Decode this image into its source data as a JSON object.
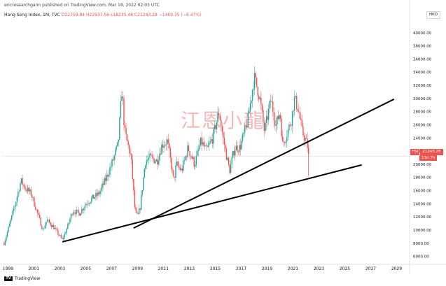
{
  "header": {
    "published": "ericresearchgann published on TradingView.com, Mar 18, 2022 02:03 UTC"
  },
  "legend": {
    "symbol": "Hang Seng Index, 1M, TVC",
    "open": "O22759.84",
    "high": "H22937.56",
    "low": "L18235.48",
    "close": "C21243.28",
    "change": "−1469.75 (−6.47%)"
  },
  "currency": "HKD",
  "price_tag": {
    "symbol": "HSI",
    "value": "21243.28",
    "countdown": "13d 7h"
  },
  "watermark": "江恩小龍",
  "footer": {
    "logo_text": "TV",
    "brand": "TradingView"
  },
  "colors": {
    "up": "#26a69a",
    "down": "#ef5350",
    "trendline": "#000000",
    "watermark": "#f2a0a0"
  },
  "chart_data": {
    "type": "candlestick",
    "title": "Hang Seng Index, 1M, TVC",
    "ylim": [
      5000,
      42000
    ],
    "xlim": [
      1998.6,
      2030.0
    ],
    "y_ticks": [
      "6000.00",
      "8000.00",
      "10000.00",
      "12000.00",
      "14000.00",
      "16000.00",
      "18000.00",
      "20000.00",
      "22000.00",
      "24000.00",
      "26000.00",
      "28000.00",
      "30000.00",
      "32000.00",
      "34000.00",
      "36000.00",
      "38000.00",
      "40000.00"
    ],
    "y_tick_values": [
      6000,
      8000,
      10000,
      12000,
      14000,
      16000,
      18000,
      20000,
      22000,
      24000,
      26000,
      28000,
      30000,
      32000,
      34000,
      36000,
      38000,
      40000
    ],
    "x_ticks": [
      "1999",
      "2001",
      "2003",
      "2005",
      "2007",
      "2009",
      "2011",
      "2013",
      "2015",
      "2017",
      "2019",
      "2021",
      "2023",
      "2025",
      "2027",
      "2029"
    ],
    "x_tick_values": [
      1999,
      2001,
      2003,
      2005,
      2007,
      2009,
      2011,
      2013,
      2015,
      2017,
      2019,
      2021,
      2023,
      2025,
      2027,
      2029
    ],
    "last_price": 21243.28,
    "price_path": [
      [
        1998.7,
        8000
      ],
      [
        1999.0,
        10000
      ],
      [
        1999.5,
        13500
      ],
      [
        2000.0,
        17500
      ],
      [
        2000.3,
        16500
      ],
      [
        2000.8,
        15500
      ],
      [
        2001.2,
        13000
      ],
      [
        2001.7,
        10000
      ],
      [
        2002.0,
        11500
      ],
      [
        2002.5,
        10500
      ],
      [
        2003.2,
        8500
      ],
      [
        2003.6,
        10500
      ],
      [
        2004.0,
        13000
      ],
      [
        2004.5,
        12500
      ],
      [
        2005.0,
        14000
      ],
      [
        2005.5,
        14800
      ],
      [
        2006.0,
        15500
      ],
      [
        2006.5,
        17500
      ],
      [
        2007.0,
        20000
      ],
      [
        2007.5,
        23000
      ],
      [
        2007.8,
        31600
      ],
      [
        2008.0,
        25000
      ],
      [
        2008.5,
        21000
      ],
      [
        2008.8,
        13000
      ],
      [
        2009.0,
        12000
      ],
      [
        2009.2,
        13500
      ],
      [
        2009.6,
        20500
      ],
      [
        2010.0,
        21000
      ],
      [
        2010.5,
        20500
      ],
      [
        2010.9,
        23000
      ],
      [
        2011.3,
        23500
      ],
      [
        2011.8,
        17500
      ],
      [
        2012.0,
        20000
      ],
      [
        2012.4,
        19000
      ],
      [
        2012.9,
        22500
      ],
      [
        2013.4,
        20000
      ],
      [
        2013.9,
        23500
      ],
      [
        2014.3,
        22000
      ],
      [
        2014.8,
        24000
      ],
      [
        2015.3,
        28000
      ],
      [
        2015.6,
        24000
      ],
      [
        2016.1,
        19000
      ],
      [
        2016.5,
        22500
      ],
      [
        2016.9,
        22500
      ],
      [
        2017.5,
        26500
      ],
      [
        2018.0,
        33200
      ],
      [
        2018.4,
        30500
      ],
      [
        2018.8,
        25000
      ],
      [
        2019.3,
        29800
      ],
      [
        2019.7,
        26000
      ],
      [
        2020.0,
        28000
      ],
      [
        2020.2,
        23000
      ],
      [
        2020.6,
        25000
      ],
      [
        2020.9,
        27000
      ],
      [
        2021.1,
        30000
      ],
      [
        2021.4,
        28500
      ],
      [
        2021.7,
        25000
      ],
      [
        2022.0,
        23500
      ],
      [
        2022.15,
        22500
      ],
      [
        2022.2,
        21243
      ]
    ],
    "trendlines": [
      {
        "name": "lower",
        "from": [
          2003.2,
          8200
        ],
        "to": [
          2026.3,
          19900
        ]
      },
      {
        "name": "upper",
        "from": [
          2008.7,
          10300
        ],
        "to": [
          2028.8,
          29900
        ]
      }
    ],
    "last_price_line": 21243.28
  }
}
